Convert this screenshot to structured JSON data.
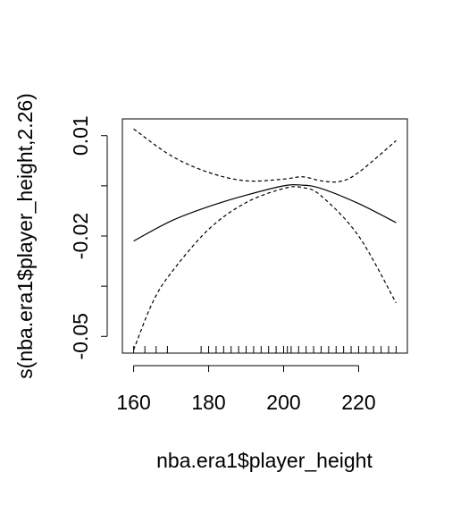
{
  "chart_data": {
    "type": "line",
    "title": "",
    "xlabel": "nba.era1$player_height",
    "ylabel": "s(nba.era1$player_height,2.26)",
    "xlim": [
      157,
      233
    ],
    "ylim": [
      -0.055,
      0.015
    ],
    "x_ticks": [
      160,
      180,
      200,
      220
    ],
    "y_ticks": [
      -0.05,
      -0.035,
      -0.02,
      -0.005,
      0.01
    ],
    "y_tick_labels": [
      "-0.05",
      "",
      "-0.02",
      "",
      "0.01"
    ],
    "grid": false,
    "legend": "none",
    "series": [
      {
        "style": "solid",
        "x": [
          160,
          170,
          180,
          190,
          200,
          205,
          210,
          220,
          230
        ],
        "y": [
          -0.0215,
          -0.0155,
          -0.0112,
          -0.0078,
          -0.005,
          -0.0048,
          -0.0058,
          -0.0103,
          -0.016
        ]
      },
      {
        "style": "dashed",
        "x": [
          160,
          170,
          180,
          190,
          200,
          205,
          210,
          215,
          220,
          230
        ],
        "y": [
          0.012,
          0.004,
          -0.001,
          -0.0035,
          -0.003,
          -0.0023,
          -0.0035,
          -0.0037,
          -0.001,
          0.0085
        ]
      },
      {
        "style": "dashed",
        "x": [
          160,
          165,
          170,
          180,
          190,
          200,
          205,
          210,
          220,
          230
        ],
        "y": [
          -0.054,
          -0.04,
          -0.031,
          -0.018,
          -0.01,
          -0.0058,
          -0.0055,
          -0.008,
          -0.02,
          -0.04
        ]
      }
    ],
    "rug": [
      160,
      163,
      166,
      169,
      178,
      180,
      182,
      184,
      186,
      188,
      190,
      192,
      194,
      196,
      198,
      200,
      201,
      202,
      204,
      206,
      208,
      210,
      212,
      214,
      216,
      218,
      220,
      222,
      224,
      226,
      228,
      230
    ]
  }
}
